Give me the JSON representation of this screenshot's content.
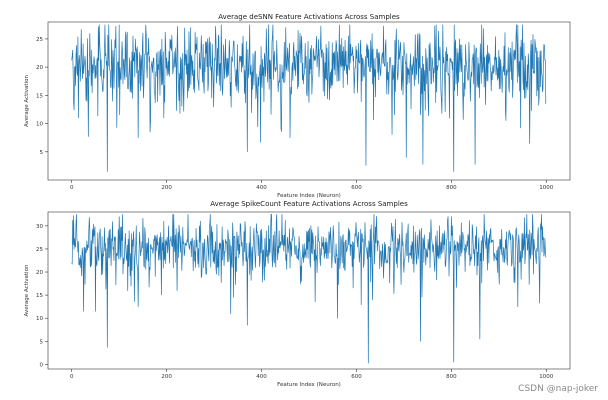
{
  "watermark": "CSDN @nap-joker",
  "chart_data": [
    {
      "type": "line",
      "title": "Average deSNN Feature Activations Across Samples",
      "xlabel": "Feature Index (Neuron)",
      "ylabel": "Average Activation",
      "xlim": [
        -50,
        1050
      ],
      "ylim": [
        0,
        28
      ],
      "xticks": [
        0,
        200,
        400,
        600,
        800,
        1000
      ],
      "yticks": [
        5,
        10,
        15,
        20,
        25
      ],
      "line_color": "#1f77b4",
      "n_points": 1000,
      "series": [
        {
          "name": "deSNN",
          "mean": 20.5,
          "spread": 3.2,
          "min": 1.0,
          "max": 27.5,
          "dips": [
            [
              35,
              7.7
            ],
            [
              75,
              1.5
            ],
            [
              100,
              9.0
            ],
            [
              140,
              7.5
            ],
            [
              165,
              8.5
            ],
            [
              370,
              5.0
            ],
            [
              460,
              7.5
            ],
            [
              620,
              2.6
            ],
            [
              705,
              4.0
            ],
            [
              740,
              2.8
            ],
            [
              805,
              1.5
            ],
            [
              850,
              2.8
            ],
            [
              965,
              6.5
            ]
          ],
          "peaks": [
            [
              100,
              27.5
            ],
            [
              250,
              27.0
            ],
            [
              950,
              27.5
            ]
          ]
        }
      ]
    },
    {
      "type": "line",
      "title": "Average SpikeCount Feature Activations Across Samples",
      "xlabel": "Feature Index (Neuron)",
      "ylabel": "Average Activation",
      "xlim": [
        -50,
        1050
      ],
      "ylim": [
        -1,
        33
      ],
      "xticks": [
        0,
        200,
        400,
        600,
        800,
        1000
      ],
      "yticks": [
        0,
        5,
        10,
        15,
        20,
        25,
        30
      ],
      "line_color": "#1f77b4",
      "n_points": 1000,
      "series": [
        {
          "name": "SpikeCount",
          "mean": 25.5,
          "spread": 3.0,
          "min": 0.3,
          "max": 32.5,
          "dips": [
            [
              25,
              11.5
            ],
            [
              50,
              11.5
            ],
            [
              75,
              3.7
            ],
            [
              140,
              12.5
            ],
            [
              335,
              11.0
            ],
            [
              370,
              8.5
            ],
            [
              560,
              10.0
            ],
            [
              625,
              0.3
            ],
            [
              735,
              5.0
            ],
            [
              805,
              0.5
            ],
            [
              860,
              5.5
            ],
            [
              940,
              12.5
            ]
          ],
          "peaks": [
            [
              100,
              32.0
            ],
            [
              245,
              32.5
            ],
            [
              990,
              32.5
            ]
          ]
        }
      ]
    }
  ]
}
